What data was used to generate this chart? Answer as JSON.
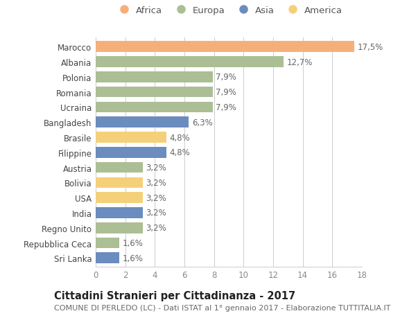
{
  "countries": [
    "Marocco",
    "Albania",
    "Polonia",
    "Romania",
    "Ucraina",
    "Bangladesh",
    "Brasile",
    "Filippine",
    "Austria",
    "Bolivia",
    "USA",
    "India",
    "Regno Unito",
    "Repubblica Ceca",
    "Sri Lanka"
  ],
  "values": [
    17.5,
    12.7,
    7.9,
    7.9,
    7.9,
    6.3,
    4.8,
    4.8,
    3.2,
    3.2,
    3.2,
    3.2,
    3.2,
    1.6,
    1.6
  ],
  "labels": [
    "17,5%",
    "12,7%",
    "7,9%",
    "7,9%",
    "7,9%",
    "6,3%",
    "4,8%",
    "4,8%",
    "3,2%",
    "3,2%",
    "3,2%",
    "3,2%",
    "3,2%",
    "1,6%",
    "1,6%"
  ],
  "continents": [
    "Africa",
    "Europa",
    "Europa",
    "Europa",
    "Europa",
    "Asia",
    "America",
    "Asia",
    "Europa",
    "America",
    "America",
    "Asia",
    "Europa",
    "Europa",
    "Asia"
  ],
  "continent_colors": {
    "Africa": "#F5B07A",
    "Europa": "#ABBE94",
    "Asia": "#6B8CBE",
    "America": "#F5D07A"
  },
  "legend_order": [
    "Africa",
    "Europa",
    "Asia",
    "America"
  ],
  "xlim": [
    0,
    18
  ],
  "xticks": [
    0,
    2,
    4,
    6,
    8,
    10,
    12,
    14,
    16,
    18
  ],
  "title": "Cittadini Stranieri per Cittadinanza - 2017",
  "subtitle": "COMUNE DI PERLEDO (LC) - Dati ISTAT al 1° gennaio 2017 - Elaborazione TUTTITALIA.IT",
  "bg_color": "#ffffff",
  "grid_color": "#cccccc",
  "bar_height": 0.72,
  "label_fontsize": 8.5,
  "title_fontsize": 10.5,
  "subtitle_fontsize": 8,
  "tick_fontsize": 8.5,
  "legend_fontsize": 9.5
}
